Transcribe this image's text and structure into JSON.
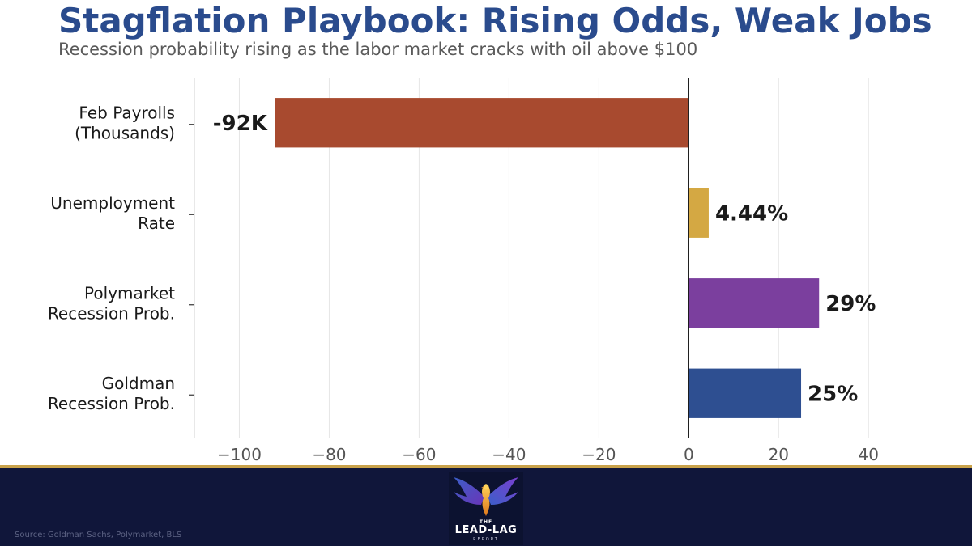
{
  "header": {
    "title": "Stagflation Playbook: Rising Odds, Weak Jobs",
    "subtitle": "Recession probability rising as the labor market cracks with oil above $100"
  },
  "chart_data": {
    "type": "bar",
    "orientation": "horizontal",
    "categories": [
      [
        "Feb Payrolls",
        "(Thousands)"
      ],
      [
        "Unemployment",
        "Rate"
      ],
      [
        "Polymarket",
        "Recession Prob."
      ],
      [
        "Goldman",
        "Recession Prob."
      ]
    ],
    "values": [
      -92,
      4.44,
      29,
      25
    ],
    "data_labels": [
      "-92K",
      "4.44%",
      "29%",
      "25%"
    ],
    "colors": [
      "#a84a2f",
      "#d4a843",
      "#7b3f9e",
      "#2e4f91"
    ],
    "xlim": [
      -110,
      45
    ],
    "xticks": [
      -100,
      -80,
      -60,
      -40,
      -20,
      0,
      20,
      40
    ],
    "xtick_labels": [
      "−100",
      "−80",
      "−60",
      "−40",
      "−20",
      "0",
      "20",
      "40"
    ],
    "grid": "vertical"
  },
  "footer": {
    "source": "Source: Goldman Sachs, Polymarket, BLS",
    "logo": {
      "icon": "phoenix-icon",
      "the": "THE",
      "name": "LEAD-LAG",
      "sub": "REPORT"
    }
  },
  "colors": {
    "title": "#2a4b8d",
    "footer_bg": "#10163a",
    "footer_rule": "#c9a24a"
  }
}
